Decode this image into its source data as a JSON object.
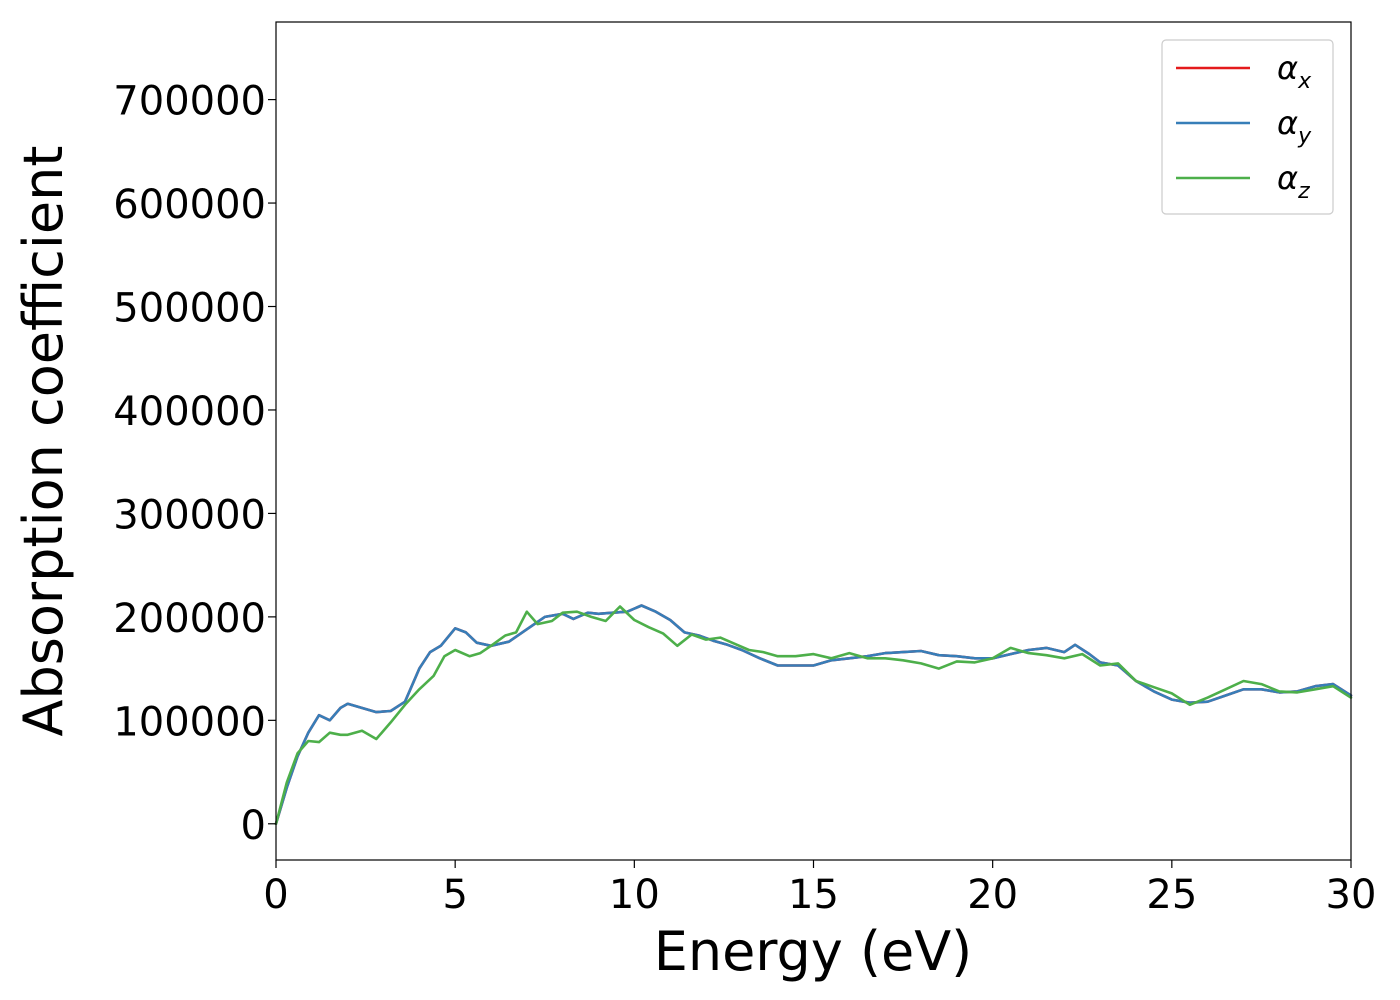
{
  "chart_data": {
    "type": "line",
    "title": "",
    "xlabel": "Energy (eV)",
    "ylabel": "Absorption coefficient",
    "xlim": [
      0,
      30
    ],
    "ylim": [
      -35000,
      775000
    ],
    "x_ticks": [
      "0",
      "5",
      "10",
      "15",
      "20",
      "25",
      "30"
    ],
    "x_tick_values": [
      0,
      5,
      10,
      15,
      20,
      25,
      30
    ],
    "y_ticks": [
      "0",
      "100000",
      "200000",
      "300000",
      "400000",
      "500000",
      "600000",
      "700000"
    ],
    "y_tick_values": [
      0,
      100000,
      200000,
      300000,
      400000,
      500000,
      600000,
      700000
    ],
    "grid": false,
    "legend_position": "top-right",
    "legend": [
      {
        "label_base": "α",
        "label_sub": "x",
        "color": "#e41a1c"
      },
      {
        "label_base": "α",
        "label_sub": "y",
        "color": "#377eb8"
      },
      {
        "label_base": "α",
        "label_sub": "z",
        "color": "#4daf4a"
      }
    ],
    "series": [
      {
        "name": "αx",
        "color": "#e41a1c",
        "x": [
          0,
          0.3,
          0.6,
          0.9,
          1.2,
          1.5,
          1.8,
          2.0,
          2.5,
          2.8,
          3.2,
          3.6,
          4.0,
          4.3,
          4.6,
          5.0,
          5.3,
          5.6,
          6.0,
          6.5,
          7.0,
          7.5,
          8.0,
          8.3,
          8.7,
          9.0,
          9.4,
          9.8,
          10.2,
          10.6,
          11.0,
          11.4,
          11.8,
          12.2,
          12.6,
          13.0,
          13.5,
          14.0,
          14.5,
          15.0,
          15.5,
          16.0,
          16.5,
          17.0,
          17.5,
          18.0,
          18.5,
          19.0,
          19.5,
          20.0,
          20.5,
          21.0,
          21.5,
          22.0,
          22.3,
          22.7,
          23.0,
          23.5,
          24.0,
          24.5,
          25.0,
          25.5,
          26.0,
          26.5,
          27.0,
          27.5,
          28.0,
          28.5,
          29.0,
          29.5,
          30.0
        ],
        "values": [
          0,
          35000,
          65000,
          88000,
          105000,
          100000,
          112000,
          116000,
          111000,
          108000,
          109000,
          118000,
          150000,
          166000,
          172000,
          189000,
          185000,
          175000,
          172000,
          176000,
          188000,
          200000,
          203000,
          198000,
          204000,
          203000,
          204000,
          205000,
          211000,
          205000,
          197000,
          185000,
          182000,
          177000,
          173000,
          168000,
          160000,
          153000,
          153000,
          153000,
          158000,
          160000,
          162000,
          165000,
          166000,
          167000,
          163000,
          162000,
          160000,
          160000,
          164000,
          168000,
          170000,
          166000,
          173000,
          164000,
          156000,
          153000,
          138000,
          128000,
          120000,
          117000,
          118000,
          124000,
          130000,
          130000,
          127000,
          128000,
          133000,
          135000,
          124000
        ]
      },
      {
        "name": "αy",
        "color": "#377eb8",
        "x": [
          0,
          0.3,
          0.6,
          0.9,
          1.2,
          1.5,
          1.8,
          2.0,
          2.5,
          2.8,
          3.2,
          3.6,
          4.0,
          4.3,
          4.6,
          5.0,
          5.3,
          5.6,
          6.0,
          6.5,
          7.0,
          7.5,
          8.0,
          8.3,
          8.7,
          9.0,
          9.4,
          9.8,
          10.2,
          10.6,
          11.0,
          11.4,
          11.8,
          12.2,
          12.6,
          13.0,
          13.5,
          14.0,
          14.5,
          15.0,
          15.5,
          16.0,
          16.5,
          17.0,
          17.5,
          18.0,
          18.5,
          19.0,
          19.5,
          20.0,
          20.5,
          21.0,
          21.5,
          22.0,
          22.3,
          22.7,
          23.0,
          23.5,
          24.0,
          24.5,
          25.0,
          25.5,
          26.0,
          26.5,
          27.0,
          27.5,
          28.0,
          28.5,
          29.0,
          29.5,
          30.0
        ],
        "values": [
          0,
          35000,
          65000,
          88000,
          105000,
          100000,
          112000,
          116000,
          111000,
          108000,
          109000,
          118000,
          150000,
          166000,
          172000,
          189000,
          185000,
          175000,
          172000,
          176000,
          188000,
          200000,
          203000,
          198000,
          204000,
          203000,
          204000,
          205000,
          211000,
          205000,
          197000,
          185000,
          182000,
          177000,
          173000,
          168000,
          160000,
          153000,
          153000,
          153000,
          158000,
          160000,
          162000,
          165000,
          166000,
          167000,
          163000,
          162000,
          160000,
          160000,
          164000,
          168000,
          170000,
          166000,
          173000,
          164000,
          156000,
          153000,
          138000,
          128000,
          120000,
          117000,
          118000,
          124000,
          130000,
          130000,
          127000,
          128000,
          133000,
          135000,
          124000
        ]
      },
      {
        "name": "αz",
        "color": "#4daf4a",
        "x": [
          0,
          0.3,
          0.6,
          0.9,
          1.2,
          1.5,
          1.8,
          2.0,
          2.4,
          2.8,
          3.2,
          3.6,
          4.0,
          4.4,
          4.7,
          5.0,
          5.4,
          5.7,
          6.0,
          6.4,
          6.7,
          7.0,
          7.3,
          7.7,
          8.0,
          8.4,
          8.8,
          9.2,
          9.6,
          10.0,
          10.4,
          10.8,
          11.2,
          11.6,
          12.0,
          12.4,
          12.8,
          13.2,
          13.6,
          14.0,
          14.5,
          15.0,
          15.5,
          16.0,
          16.5,
          17.0,
          17.5,
          18.0,
          18.5,
          19.0,
          19.5,
          20.0,
          20.5,
          21.0,
          21.5,
          22.0,
          22.5,
          23.0,
          23.5,
          24.0,
          24.5,
          25.0,
          25.5,
          26.0,
          26.5,
          27.0,
          27.5,
          28.0,
          28.5,
          29.0,
          29.5,
          30.0
        ],
        "values": [
          0,
          40000,
          68000,
          80000,
          79000,
          88000,
          86000,
          86000,
          90000,
          82000,
          98000,
          115000,
          130000,
          143000,
          162000,
          168000,
          162000,
          165000,
          172000,
          182000,
          185000,
          205000,
          193000,
          196000,
          204000,
          205000,
          200000,
          196000,
          210000,
          197000,
          190000,
          184000,
          172000,
          183000,
          178000,
          180000,
          174000,
          168000,
          166000,
          162000,
          162000,
          164000,
          160000,
          165000,
          160000,
          160000,
          158000,
          155000,
          150000,
          157000,
          156000,
          160000,
          170000,
          165000,
          163000,
          160000,
          164000,
          153000,
          155000,
          138000,
          132000,
          126000,
          115000,
          122000,
          130000,
          138000,
          135000,
          128000,
          127000,
          130000,
          133000,
          122000
        ]
      }
    ]
  }
}
